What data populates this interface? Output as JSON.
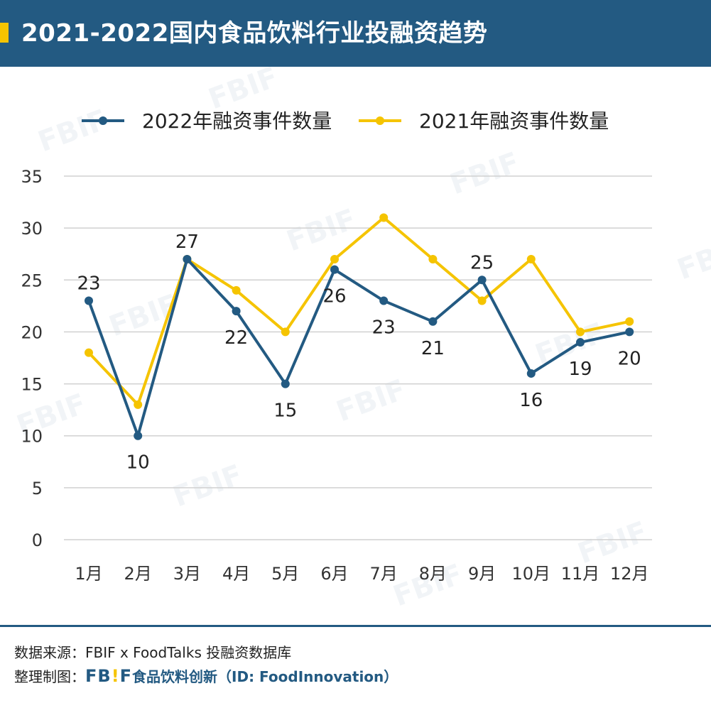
{
  "header": {
    "title": "2021-2022国内食品饮料行业投融资趋势"
  },
  "colors": {
    "header_bg": "#235a82",
    "series_2022": "#235a82",
    "series_2021": "#f5c400",
    "grid": "#d0d0d0"
  },
  "watermark": "FBIF",
  "chart_data": {
    "type": "line",
    "title": "",
    "xlabel": "",
    "ylabel": "",
    "ylim": [
      0,
      35
    ],
    "yticks": [
      0,
      5,
      10,
      15,
      20,
      25,
      30,
      35
    ],
    "categories": [
      "1月",
      "2月",
      "3月",
      "4月",
      "5月",
      "6月",
      "7月",
      "8月",
      "9月",
      "10月",
      "11月",
      "12月"
    ],
    "grid": true,
    "legend": "top",
    "series": [
      {
        "name": "2022年融资事件数量",
        "color": "#235a82",
        "values": [
          23,
          10,
          27,
          22,
          15,
          26,
          23,
          21,
          25,
          16,
          19,
          20
        ],
        "labels": [
          "23",
          "10",
          "27",
          "22",
          "15",
          "26",
          "23",
          "21",
          "25",
          "16",
          "19",
          "20"
        ]
      },
      {
        "name": "2021年融资事件数量",
        "color": "#f5c400",
        "values": [
          18,
          13,
          27,
          24,
          20,
          27,
          31,
          27,
          23,
          27,
          20,
          21
        ]
      }
    ]
  },
  "footer": {
    "source_label": "数据来源：",
    "source_text": "FBIF x FoodTalks 投融资数据库",
    "maker_label": "整理制图：",
    "maker_logo_a": "FB",
    "maker_logo_bang": "!",
    "maker_logo_b": "F",
    "maker_text": "食品饮料创新（ID: FoodInnovation）"
  }
}
